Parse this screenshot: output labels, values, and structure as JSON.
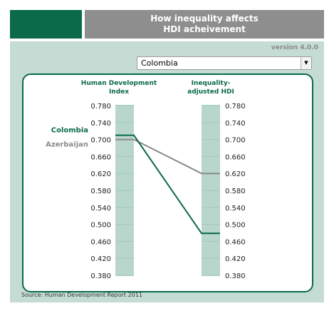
{
  "header": {
    "title_line1": "How inequality affects",
    "title_line2": "HDI acheivement"
  },
  "version": "version 4.0.0",
  "dropdown": {
    "selected": "Colombia"
  },
  "source": "Source: Human Development Report 2011",
  "colors": {
    "dark_green": "#0a6a4a",
    "gray": "#8a8a8a",
    "bar_fill": "#b8d6cc",
    "panel": "#c4dcd3"
  },
  "chart_data": {
    "type": "line",
    "axes": [
      {
        "title_lines": [
          "Human Development",
          "Index"
        ]
      },
      {
        "title_lines": [
          "Inequality-",
          "adjusted HDI"
        ]
      }
    ],
    "ticks": [
      "0.780",
      "0.740",
      "0.700",
      "0.660",
      "0.620",
      "0.580",
      "0.540",
      "0.500",
      "0.460",
      "0.420",
      "0.380"
    ],
    "ylim": [
      0.38,
      0.78
    ],
    "series": [
      {
        "name": "Colombia",
        "color": "#0a6a4a",
        "values": [
          0.71,
          0.479
        ]
      },
      {
        "name": "Azerbaijan",
        "color": "#8a8a8a",
        "values": [
          0.7,
          0.62
        ]
      }
    ]
  }
}
